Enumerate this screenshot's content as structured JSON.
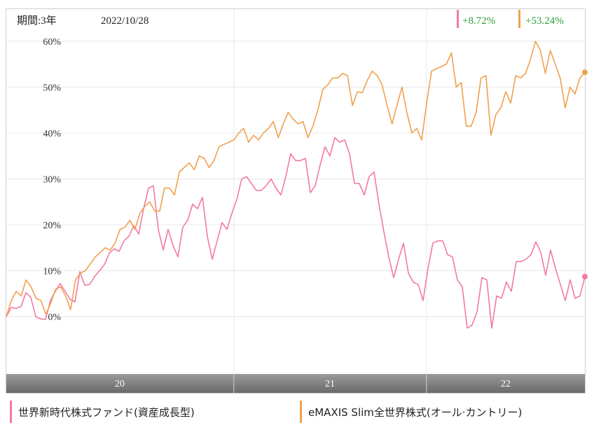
{
  "header": {
    "period_label": "期間:3年",
    "date": "2022/10/28"
  },
  "returns": [
    {
      "value": "+8.72%",
      "marker_color": "#f27aa3",
      "text_color": "#2e9e3a"
    },
    {
      "value": "+53.24%",
      "marker_color": "#f0a050",
      "text_color": "#2e9e3a"
    }
  ],
  "colors": {
    "fund_a": "#f27aa3",
    "fund_b": "#f0a050",
    "grid": "#e8e8e8",
    "axis_bar": "#7a7a7a"
  },
  "legend": [
    {
      "label": "世界新時代株式ファンド(資産成長型)",
      "color": "#f27aa3"
    },
    {
      "label": "eMAXIS Slim全世界株式(オール·カントリー)",
      "color": "#f0a050"
    }
  ],
  "chart_data": {
    "type": "line",
    "title": "",
    "ylabel": "",
    "xlabel": "",
    "ylim": [
      -12.5,
      67
    ],
    "yticks": [
      0,
      10,
      20,
      30,
      40,
      50,
      60
    ],
    "ytick_labels": [
      "0%",
      "10%",
      "20%",
      "30%",
      "40%",
      "50%",
      "60%"
    ],
    "x_range": [
      "2019-10-28",
      "2022-10-28"
    ],
    "year_bands": [
      {
        "label": "20",
        "start": "2019-10-28",
        "end": "2020-12-31"
      },
      {
        "label": "21",
        "start": "2021-01-01",
        "end": "2021-12-31"
      },
      {
        "label": "22",
        "start": "2022-01-01",
        "end": "2022-10-28"
      }
    ],
    "grid": true,
    "legend_position": "bottom",
    "series": [
      {
        "name": "世界新時代株式ファンド(資産成長型)",
        "color": "#f27aa3",
        "end_value": 8.72,
        "values": [
          0,
          2.0,
          1.8,
          2.2,
          5.2,
          4.2,
          0,
          -0.5,
          -0.6,
          3.5,
          5.5,
          7.2,
          5.5,
          3.8,
          3.2,
          9.8,
          6.8,
          7.0,
          8.7,
          10.0,
          11.3,
          13.8,
          14.8,
          14.2,
          16.5,
          17.5,
          19.8,
          18.0,
          23.5,
          28.0,
          28.5,
          19.0,
          14.5,
          19.0,
          15.5,
          13.0,
          19.5,
          21.0,
          24.5,
          23.5,
          26.0,
          17.5,
          12.5,
          16.5,
          20.5,
          19.0,
          22.5,
          25.5,
          30.0,
          30.5,
          29.0,
          27.5,
          27.5,
          28.5,
          30.0,
          28.0,
          26.5,
          30.5,
          35.5,
          34.0,
          34.0,
          34.5,
          27.0,
          28.5,
          33.0,
          37.0,
          35.0,
          39.0,
          38.0,
          38.5,
          35.5,
          29.0,
          29.0,
          26.5,
          30.5,
          31.5,
          24.5,
          18.5,
          13.0,
          8.5,
          12.5,
          16.0,
          9.5,
          7.5,
          7.0,
          3.5,
          10.5,
          16.0,
          16.5,
          16.5,
          13.5,
          13.0,
          8.0,
          6.5,
          -2.5,
          -1.8,
          1.0,
          8.5,
          8.0,
          -2.5,
          4.5,
          4.0,
          7.5,
          5.5,
          12.0,
          12.0,
          12.5,
          13.5,
          16.3,
          14.0,
          9.0,
          14.5,
          10.5,
          7.0,
          3.5,
          8.0,
          4.0,
          4.5,
          8.72
        ]
      },
      {
        "name": "eMAXIS Slim全世界株式(オール·カントリー)",
        "color": "#f0a050",
        "end_value": 53.24,
        "values": [
          0,
          3.5,
          5.5,
          4.5,
          8.0,
          6.5,
          4.0,
          3.5,
          0.5,
          3.0,
          6.0,
          6.5,
          4.5,
          1.5,
          8.0,
          9.5,
          10.0,
          11.5,
          13.0,
          14.0,
          15.0,
          14.5,
          16.0,
          19.0,
          19.5,
          21.0,
          19.0,
          22.5,
          24.0,
          25.0,
          23.0,
          23.0,
          28.0,
          28.0,
          26.5,
          31.5,
          32.5,
          33.5,
          32.0,
          35.0,
          34.5,
          32.5,
          34.0,
          37.0,
          37.5,
          38.0,
          38.5,
          40.0,
          41.0,
          38.0,
          39.5,
          38.5,
          40.0,
          41.0,
          42.5,
          39.0,
          42.0,
          44.5,
          43.0,
          42.0,
          42.5,
          39.0,
          41.5,
          45.0,
          49.5,
          50.5,
          52.0,
          52.0,
          53.0,
          52.5,
          46.0,
          49.0,
          48.8,
          51.5,
          53.5,
          52.5,
          50.5,
          46.0,
          42.0,
          46.0,
          50.0,
          44.5,
          40.0,
          41.0,
          38.5,
          46.5,
          53.5,
          54.0,
          54.5,
          55.0,
          57.5,
          50.0,
          51.0,
          41.5,
          41.5,
          44.5,
          52.0,
          52.5,
          39.5,
          44.0,
          45.5,
          49.0,
          46.5,
          52.5,
          52.0,
          53.0,
          56.0,
          60.0,
          58.0,
          53.0,
          58.0,
          55.0,
          52.0,
          45.5,
          50.0,
          48.5,
          52.0,
          53.24
        ]
      }
    ]
  }
}
